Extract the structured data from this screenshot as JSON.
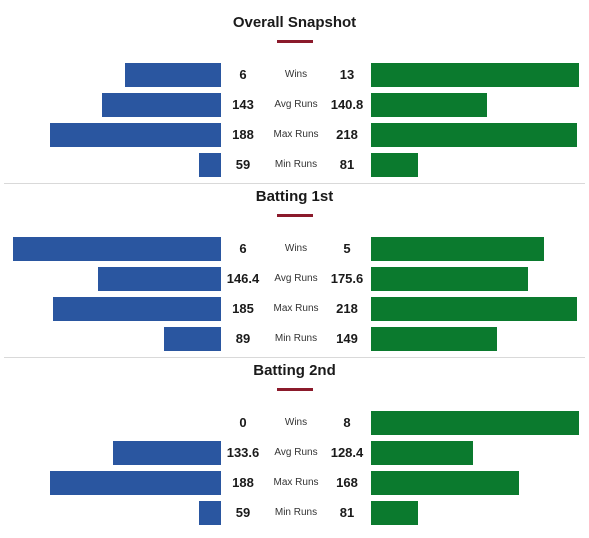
{
  "colors": {
    "left": "#2a56a0",
    "right": "#0b7a2e",
    "accent": "#8b1a2b"
  },
  "chart_data": [
    {
      "type": "bar",
      "title": "Overall Snapshot",
      "categories": [
        "Wins",
        "Avg Runs",
        "Max Runs",
        "Min Runs"
      ],
      "series": [
        {
          "values": [
            6,
            143,
            188,
            59
          ]
        },
        {
          "values": [
            13,
            140.8,
            218,
            81
          ]
        }
      ]
    },
    {
      "type": "bar",
      "title": "Batting 1st",
      "categories": [
        "Wins",
        "Avg Runs",
        "Max Runs",
        "Min Runs"
      ],
      "series": [
        {
          "values": [
            6,
            146.4,
            185,
            89
          ]
        },
        {
          "values": [
            5,
            175.6,
            218,
            149
          ]
        }
      ]
    },
    {
      "type": "bar",
      "title": "Batting 2nd",
      "categories": [
        "Wins",
        "Avg Runs",
        "Max Runs",
        "Min Runs"
      ],
      "series": [
        {
          "values": [
            0,
            133.6,
            188,
            59
          ]
        },
        {
          "values": [
            8,
            128.4,
            168,
            81
          ]
        }
      ]
    }
  ]
}
